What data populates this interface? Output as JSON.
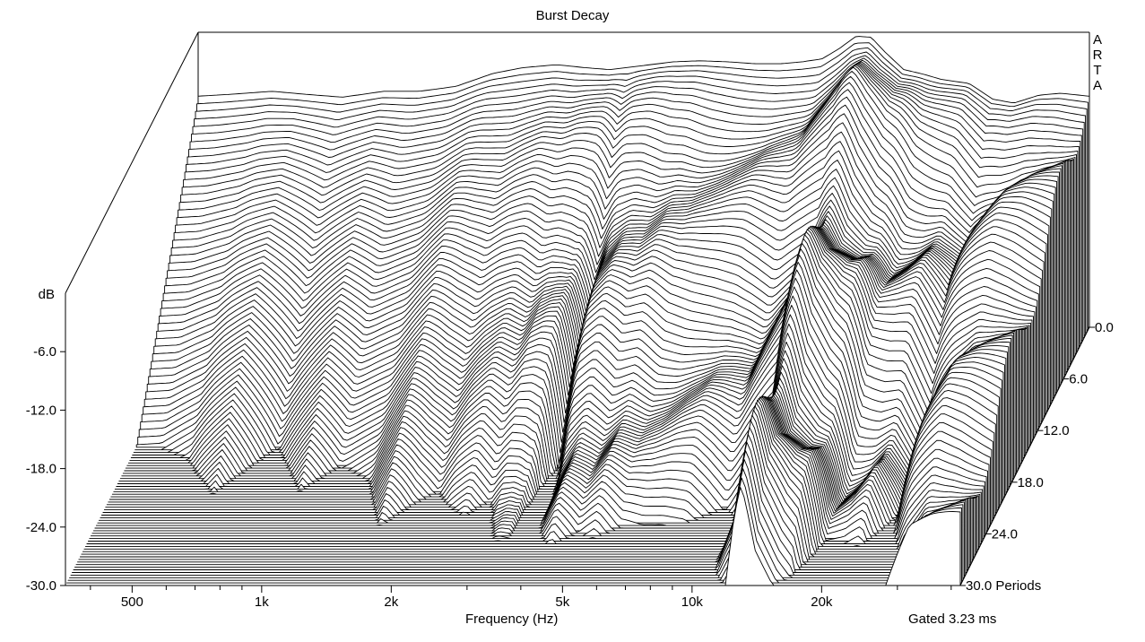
{
  "chart_data": {
    "type": "waterfall",
    "title": "Burst Decay",
    "brand": [
      "A",
      "R",
      "T",
      "A"
    ],
    "xlabel": "Frequency (Hz)",
    "zlabel": "dB",
    "ylabel_unit": "Periods",
    "note": "Gated 3.23 ms",
    "x_scale": "log",
    "xlim": [
      350,
      42000
    ],
    "x_ticks": [
      {
        "value": 500,
        "label": "500"
      },
      {
        "value": 1000,
        "label": "1k"
      },
      {
        "value": 2000,
        "label": "2k"
      },
      {
        "value": 5000,
        "label": "5k"
      },
      {
        "value": 10000,
        "label": "10k"
      },
      {
        "value": 20000,
        "label": "20k"
      }
    ],
    "x_minor": [
      400,
      600,
      700,
      800,
      900,
      3000,
      4000,
      6000,
      7000,
      8000,
      9000,
      30000,
      40000
    ],
    "zlim": [
      -30,
      0
    ],
    "z_ticks": [
      {
        "value": -6,
        "label": "-6.0"
      },
      {
        "value": -12,
        "label": "-12.0"
      },
      {
        "value": -18,
        "label": "-18.0"
      },
      {
        "value": -24,
        "label": "-24.0"
      },
      {
        "value": -30,
        "label": "-30.0"
      }
    ],
    "ylim": [
      0,
      30
    ],
    "y_ticks": [
      {
        "value": 0,
        "label": "0.0"
      },
      {
        "value": 6,
        "label": "6.0"
      },
      {
        "value": 12,
        "label": "12.0"
      },
      {
        "value": 18,
        "label": "18.0"
      },
      {
        "value": 24,
        "label": "24.0"
      },
      {
        "value": 30,
        "label": "30.0"
      }
    ],
    "slice_count": 100,
    "front_level_db": -30,
    "decay": {
      "mean_sustain": [
        [
          350,
          0.6
        ],
        [
          400,
          0.6
        ],
        [
          480,
          0.65
        ],
        [
          600,
          0.82
        ],
        [
          750,
          0.6
        ],
        [
          950,
          0.8
        ],
        [
          1100,
          0.68
        ],
        [
          1350,
          0.74
        ],
        [
          1600,
          0.92
        ],
        [
          1800,
          0.8
        ],
        [
          2000,
          0.72
        ],
        [
          2200,
          0.8
        ],
        [
          2450,
          0.86
        ],
        [
          2700,
          0.8
        ],
        [
          2900,
          0.88
        ],
        [
          3100,
          0.9
        ],
        [
          3300,
          0.88
        ],
        [
          3550,
          0.6
        ],
        [
          3800,
          0.82
        ],
        [
          4200,
          0.92
        ],
        [
          4700,
          0.84
        ],
        [
          5200,
          0.9
        ],
        [
          5800,
          0.84
        ],
        [
          6500,
          0.85
        ],
        [
          7200,
          0.88
        ],
        [
          8100,
          0.9
        ],
        [
          8800,
          0.86
        ],
        [
          9700,
          0.8
        ],
        [
          11000,
          0.92
        ],
        [
          12000,
          1.0
        ],
        [
          13000,
          1.6
        ],
        [
          14000,
          1.3
        ],
        [
          15200,
          1.25
        ],
        [
          16500,
          1.2
        ],
        [
          18000,
          0.88
        ],
        [
          20000,
          0.92
        ],
        [
          22000,
          1.0
        ],
        [
          25000,
          0.85
        ],
        [
          28000,
          1.3
        ],
        [
          32000,
          1.6
        ],
        [
          36000,
          1.6
        ],
        [
          42000,
          1.6
        ]
      ],
      "start_db": [
        [
          350,
          -6.5
        ],
        [
          420,
          -6.3
        ],
        [
          520,
          -6.0
        ],
        [
          620,
          -6.3
        ],
        [
          760,
          -6.6
        ],
        [
          950,
          -6.0
        ],
        [
          1150,
          -6.0
        ],
        [
          1400,
          -5.5
        ],
        [
          1700,
          -4.2
        ],
        [
          2000,
          -3.6
        ],
        [
          2400,
          -3.3
        ],
        [
          2800,
          -3.6
        ],
        [
          3200,
          -3.8
        ],
        [
          3800,
          -3.4
        ],
        [
          4500,
          -3.0
        ],
        [
          5200,
          -2.9
        ],
        [
          6000,
          -3.0
        ],
        [
          7000,
          -3.2
        ],
        [
          8000,
          -3.2
        ],
        [
          9000,
          -3.0
        ],
        [
          10000,
          -2.7
        ],
        [
          11000,
          -1.6
        ],
        [
          12000,
          -0.4
        ],
        [
          13000,
          -0.5
        ],
        [
          14000,
          -2.0
        ],
        [
          15500,
          -3.8
        ],
        [
          17000,
          -4.2
        ],
        [
          19000,
          -4.8
        ],
        [
          22000,
          -5.2
        ],
        [
          25000,
          -6.8
        ],
        [
          28000,
          -7.2
        ],
        [
          32000,
          -6.4
        ],
        [
          36000,
          -6.2
        ],
        [
          42000,
          -6.5
        ]
      ],
      "ripple_db": [
        [
          350,
          0.0
        ],
        [
          1000,
          0.0
        ],
        [
          2000,
          0.4
        ],
        [
          2500,
          0.9
        ],
        [
          2800,
          1.2
        ],
        [
          3200,
          1.8
        ],
        [
          4000,
          1.8
        ],
        [
          5000,
          1.9
        ],
        [
          6000,
          2.0
        ],
        [
          7000,
          2.0
        ],
        [
          8000,
          2.2
        ],
        [
          9000,
          2.0
        ],
        [
          10000,
          2.2
        ],
        [
          11000,
          2.5
        ],
        [
          12000,
          2.8
        ],
        [
          14000,
          3.2
        ],
        [
          16000,
          3.0
        ],
        [
          18000,
          2.8
        ],
        [
          20000,
          2.8
        ],
        [
          25000,
          2.4
        ],
        [
          30000,
          2.8
        ],
        [
          36000,
          2.8
        ],
        [
          42000,
          2.8
        ]
      ]
    }
  }
}
